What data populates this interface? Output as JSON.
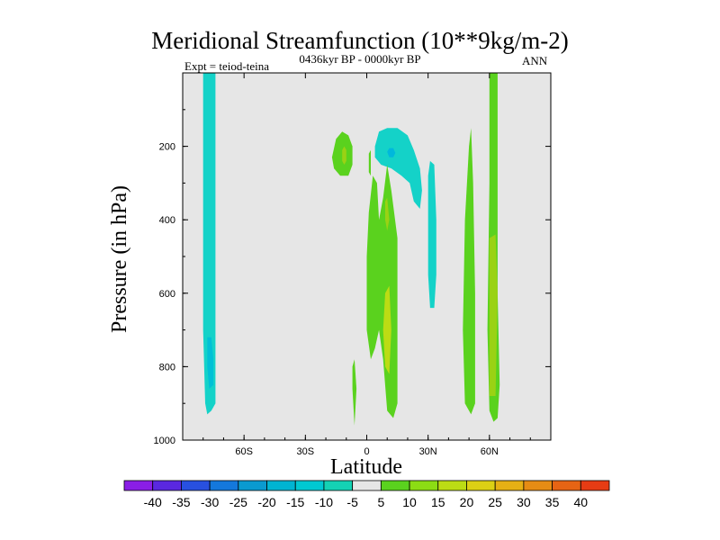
{
  "chart_data": {
    "type": "contour",
    "title": "Meridional Streamfunction (10**9kg/m-2)",
    "subtitle": "0436kyr BP - 0000kyr BP",
    "left_label": "Expt = teiod-teina",
    "right_label": "ANN",
    "xlabel": "Latitude",
    "ylabel": "Pressure (in hPa)",
    "xlim": [
      -90,
      90
    ],
    "ylim": [
      1000,
      0
    ],
    "x_ticks": [
      {
        "value": -60,
        "label": "60S"
      },
      {
        "value": -30,
        "label": "30S"
      },
      {
        "value": 0,
        "label": "0"
      },
      {
        "value": 30,
        "label": "30N"
      },
      {
        "value": 60,
        "label": "60N"
      }
    ],
    "y_ticks": [
      {
        "value": 200,
        "label": "200"
      },
      {
        "value": 400,
        "label": "400"
      },
      {
        "value": 600,
        "label": "600"
      },
      {
        "value": 800,
        "label": "800"
      },
      {
        "value": 1000,
        "label": "1000"
      }
    ],
    "background_color": "#e6e6e6",
    "contour_levels": [
      -40,
      -35,
      -30,
      -25,
      -20,
      -15,
      -10,
      -5,
      5,
      10,
      15,
      20,
      25,
      30,
      35,
      40
    ],
    "colorbar": {
      "labels": [
        "-40",
        "-35",
        "-30",
        "-25",
        "-20",
        "-15",
        "-10",
        "-5",
        "5",
        "10",
        "15",
        "20",
        "25",
        "30",
        "35",
        "40"
      ],
      "colors": [
        "#8a1ee6",
        "#5a28e0",
        "#2850e0",
        "#1478dc",
        "#0a9ad0",
        "#00b4d2",
        "#00c8d2",
        "#14d2b4",
        "#e6e6e6",
        "#5ad21e",
        "#8cdc14",
        "#bcdc14",
        "#dcd014",
        "#e6b014",
        "#e68c14",
        "#e66414",
        "#e63c14"
      ]
    },
    "regions": [
      {
        "name": "southern-polar-cell",
        "value": -7,
        "color": "#14d2c8",
        "points": [
          [
            -80,
            0
          ],
          [
            -74,
            0
          ],
          [
            -74,
            200
          ],
          [
            -74,
            500
          ],
          [
            -74,
            900
          ],
          [
            -76,
            920
          ],
          [
            -78,
            930
          ],
          [
            -79,
            900
          ],
          [
            -80,
            700
          ],
          [
            -80,
            300
          ]
        ]
      },
      {
        "name": "southern-polar-core",
        "value": -12,
        "color": "#00c0d6",
        "points": [
          [
            -78,
            720
          ],
          [
            -76,
            720
          ],
          [
            -75,
            780
          ],
          [
            -75,
            850
          ],
          [
            -77,
            860
          ],
          [
            -78,
            800
          ]
        ]
      },
      {
        "name": "tropical-upper-negative",
        "value": -7,
        "color": "#14d2c8",
        "points": [
          [
            4,
            200
          ],
          [
            6,
            160
          ],
          [
            10,
            150
          ],
          [
            15,
            150
          ],
          [
            20,
            170
          ],
          [
            23,
            210
          ],
          [
            26,
            260
          ],
          [
            27,
            320
          ],
          [
            26,
            370
          ],
          [
            23,
            350
          ],
          [
            21,
            300
          ],
          [
            17,
            280
          ],
          [
            12,
            260
          ],
          [
            7,
            250
          ],
          [
            4,
            230
          ]
        ]
      },
      {
        "name": "tropical-upper-negative-core",
        "value": -12,
        "color": "#00b8dc",
        "points": [
          [
            10,
            215
          ],
          [
            11,
            205
          ],
          [
            13,
            205
          ],
          [
            14,
            218
          ],
          [
            13,
            230
          ],
          [
            11,
            230
          ]
        ]
      },
      {
        "name": "nh-subtropical-negative",
        "value": -7,
        "color": "#14d2c8",
        "points": [
          [
            30,
            280
          ],
          [
            31,
            240
          ],
          [
            33,
            250
          ],
          [
            34,
            400
          ],
          [
            34,
            550
          ],
          [
            33,
            640
          ],
          [
            31,
            640
          ],
          [
            30,
            550
          ]
        ]
      },
      {
        "name": "sh-upper-positive",
        "value": 7,
        "color": "#5ad21e",
        "points": [
          [
            -17,
            230
          ],
          [
            -15,
            180
          ],
          [
            -12,
            160
          ],
          [
            -9,
            170
          ],
          [
            -7,
            200
          ],
          [
            -7,
            250
          ],
          [
            -9,
            280
          ],
          [
            -13,
            280
          ],
          [
            -16,
            260
          ]
        ]
      },
      {
        "name": "sh-upper-positive-core",
        "value": 12,
        "color": "#9ad214",
        "points": [
          [
            -12,
            210
          ],
          [
            -11,
            200
          ],
          [
            -10,
            210
          ],
          [
            -10,
            240
          ],
          [
            -11,
            250
          ],
          [
            -12,
            240
          ]
        ]
      },
      {
        "name": "eq-thin-positive-upper",
        "value": 6,
        "color": "#5ad21e",
        "points": [
          [
            1,
            220
          ],
          [
            2,
            210
          ],
          [
            2,
            280
          ],
          [
            1,
            270
          ]
        ]
      },
      {
        "name": "eq-thin-positive-lower",
        "value": 6,
        "color": "#5ad21e",
        "points": [
          [
            -7,
            800
          ],
          [
            -6,
            780
          ],
          [
            -5,
            860
          ],
          [
            -6,
            960
          ],
          [
            -7,
            860
          ]
        ]
      },
      {
        "name": "hadley-cell-main",
        "value": 8,
        "color": "#5ad21e",
        "points": [
          [
            0,
            500
          ],
          [
            1,
            380
          ],
          [
            3,
            280
          ],
          [
            5,
            300
          ],
          [
            6,
            400
          ],
          [
            8,
            340
          ],
          [
            10,
            250
          ],
          [
            12,
            320
          ],
          [
            15,
            450
          ],
          [
            15,
            900
          ],
          [
            13,
            940
          ],
          [
            10,
            920
          ],
          [
            8,
            780
          ],
          [
            6,
            700
          ],
          [
            4,
            750
          ],
          [
            2,
            780
          ],
          [
            0,
            700
          ]
        ]
      },
      {
        "name": "hadley-cell-core-upper",
        "value": 14,
        "color": "#9ad214",
        "points": [
          [
            9,
            350
          ],
          [
            10,
            340
          ],
          [
            11,
            400
          ],
          [
            10,
            430
          ],
          [
            9,
            400
          ]
        ]
      },
      {
        "name": "hadley-cell-core-lower",
        "value": 18,
        "color": "#bcdc14",
        "points": [
          [
            9,
            600
          ],
          [
            11,
            580
          ],
          [
            12,
            700
          ],
          [
            11,
            820
          ],
          [
            9,
            800
          ],
          [
            8,
            700
          ]
        ]
      },
      {
        "name": "nh-midlat-positive",
        "value": 8,
        "color": "#5ad21e",
        "points": [
          [
            47,
            700
          ],
          [
            48,
            400
          ],
          [
            50,
            200
          ],
          [
            51,
            150
          ],
          [
            52,
            300
          ],
          [
            53,
            600
          ],
          [
            53,
            900
          ],
          [
            51,
            930
          ],
          [
            48,
            900
          ]
        ]
      },
      {
        "name": "nh-polar-positive",
        "value": 8,
        "color": "#5ad21e",
        "points": [
          [
            60,
            0
          ],
          [
            64,
            0
          ],
          [
            64,
            200
          ],
          [
            64,
            600
          ],
          [
            65,
            850
          ],
          [
            64,
            940
          ],
          [
            62,
            950
          ],
          [
            60,
            920
          ],
          [
            59,
            700
          ],
          [
            60,
            300
          ]
        ]
      },
      {
        "name": "nh-polar-core",
        "value": 16,
        "color": "#bcdc14",
        "points": [
          [
            61,
            600
          ],
          [
            63,
            580
          ],
          [
            63,
            780
          ],
          [
            62,
            820
          ],
          [
            61,
            750
          ]
        ]
      },
      {
        "name": "nh-polar-core-light",
        "value": 12,
        "color": "#9ad214",
        "points": [
          [
            60,
            450
          ],
          [
            63,
            440
          ],
          [
            64,
            600
          ],
          [
            63,
            880
          ],
          [
            60,
            880
          ],
          [
            60,
            600
          ]
        ]
      }
    ]
  }
}
